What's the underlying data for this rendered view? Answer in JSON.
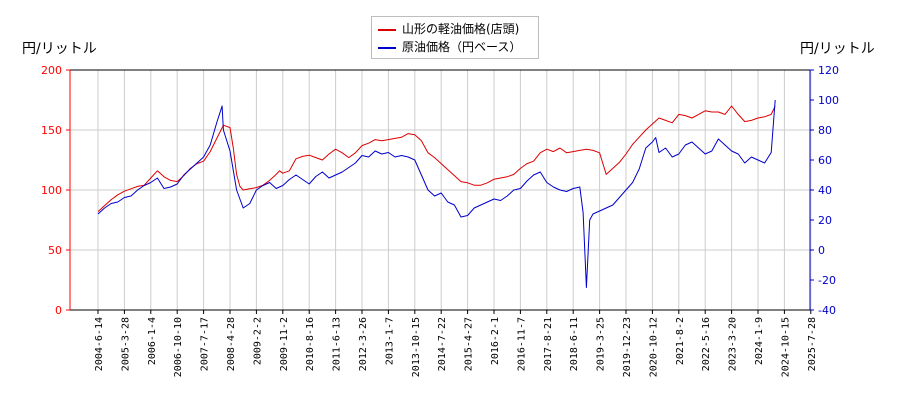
{
  "chart_data": {
    "type": "line",
    "left_unit": "円/リットル",
    "right_unit": "円/リットル",
    "x_ticks": [
      "2004-6-14",
      "2005-3-28",
      "2006-1-4",
      "2006-10-10",
      "2007-7-17",
      "2008-4-28",
      "2009-2-2",
      "2009-11-2",
      "2010-8-16",
      "2011-6-13",
      "2012-3-26",
      "2013-1-7",
      "2013-10-15",
      "2014-7-22",
      "2015-4-27",
      "2016-2-1",
      "2016-11-7",
      "2017-8-21",
      "2018-6-11",
      "2019-3-25",
      "2019-12-23",
      "2020-10-12",
      "2021-8-2",
      "2022-5-16",
      "2023-3-20",
      "2024-1-9",
      "2024-10-15",
      "2025-7-28"
    ],
    "y_left": {
      "min": 0,
      "max": 200,
      "ticks": [
        0,
        50,
        100,
        150,
        200
      ],
      "color": "#ff0000"
    },
    "y_right": {
      "min": -40,
      "max": 120,
      "ticks": [
        -40,
        -20,
        0,
        20,
        40,
        60,
        80,
        100,
        120
      ],
      "color": "#0000cc"
    },
    "grid": true,
    "legend_position": "top-center",
    "series": [
      {
        "name": "山形の軽油価格(店頭)",
        "axis": "left",
        "color": "#dd0000",
        "values": [
          [
            0,
            82
          ],
          [
            1,
            87
          ],
          [
            2,
            92
          ],
          [
            3,
            96
          ],
          [
            4,
            99
          ],
          [
            5,
            101
          ],
          [
            6,
            103
          ],
          [
            7,
            104
          ],
          [
            8,
            110
          ],
          [
            9,
            116
          ],
          [
            10,
            111
          ],
          [
            11,
            108
          ],
          [
            12,
            107
          ],
          [
            13,
            112
          ],
          [
            14,
            118
          ],
          [
            15,
            122
          ],
          [
            16,
            124
          ],
          [
            17,
            132
          ],
          [
            18,
            143
          ],
          [
            19,
            154
          ],
          [
            20,
            152
          ],
          [
            20.5,
            135
          ],
          [
            21,
            113
          ],
          [
            21.5,
            103
          ],
          [
            22,
            100
          ],
          [
            23,
            101
          ],
          [
            24,
            102
          ],
          [
            25,
            104
          ],
          [
            26,
            108
          ],
          [
            27,
            113
          ],
          [
            27.5,
            116
          ],
          [
            28,
            114
          ],
          [
            29,
            116
          ],
          [
            30,
            126
          ],
          [
            31,
            128
          ],
          [
            32,
            129
          ],
          [
            33,
            127
          ],
          [
            34,
            125
          ],
          [
            35,
            130
          ],
          [
            36,
            134
          ],
          [
            37,
            131
          ],
          [
            38,
            127
          ],
          [
            39,
            131
          ],
          [
            40,
            137
          ],
          [
            41,
            139
          ],
          [
            42,
            142
          ],
          [
            43,
            141
          ],
          [
            44,
            142
          ],
          [
            45,
            143
          ],
          [
            46,
            144
          ],
          [
            47,
            147
          ],
          [
            48,
            146
          ],
          [
            49,
            141
          ],
          [
            50,
            131
          ],
          [
            51,
            127
          ],
          [
            52,
            122
          ],
          [
            53,
            117
          ],
          [
            54,
            112
          ],
          [
            55,
            107
          ],
          [
            56,
            106
          ],
          [
            57,
            104
          ],
          [
            58,
            104
          ],
          [
            59,
            106
          ],
          [
            60,
            109
          ],
          [
            61,
            110
          ],
          [
            62,
            111
          ],
          [
            63,
            113
          ],
          [
            64,
            118
          ],
          [
            65,
            122
          ],
          [
            66,
            124
          ],
          [
            67,
            131
          ],
          [
            68,
            134
          ],
          [
            69,
            132
          ],
          [
            70,
            135
          ],
          [
            71,
            131
          ],
          [
            72,
            132
          ],
          [
            73,
            133
          ],
          [
            74,
            134
          ],
          [
            75,
            133
          ],
          [
            76,
            131
          ],
          [
            76.5,
            122
          ],
          [
            77,
            113
          ],
          [
            78,
            118
          ],
          [
            79,
            123
          ],
          [
            80,
            130
          ],
          [
            81,
            138
          ],
          [
            82,
            144
          ],
          [
            83,
            150
          ],
          [
            84,
            155
          ],
          [
            85,
            160
          ],
          [
            86,
            158
          ],
          [
            87,
            156
          ],
          [
            88,
            163
          ],
          [
            89,
            162
          ],
          [
            90,
            160
          ],
          [
            91,
            163
          ],
          [
            92,
            166
          ],
          [
            93,
            165
          ],
          [
            94,
            165
          ],
          [
            95,
            163
          ],
          [
            96,
            170
          ],
          [
            97,
            163
          ],
          [
            98,
            157
          ],
          [
            99,
            158
          ],
          [
            100,
            160
          ],
          [
            101,
            161
          ],
          [
            102,
            163
          ],
          [
            102.6,
            170
          ]
        ]
      },
      {
        "name": "原油価格（円ベース）",
        "axis": "right",
        "color": "#0000cc",
        "values": [
          [
            0,
            24
          ],
          [
            1,
            28
          ],
          [
            2,
            31
          ],
          [
            3,
            32
          ],
          [
            4,
            35
          ],
          [
            5,
            36
          ],
          [
            6,
            40
          ],
          [
            7,
            43
          ],
          [
            8,
            45
          ],
          [
            9,
            48
          ],
          [
            10,
            41
          ],
          [
            11,
            42
          ],
          [
            12,
            44
          ],
          [
            13,
            50
          ],
          [
            14,
            54
          ],
          [
            15,
            58
          ],
          [
            16,
            62
          ],
          [
            17,
            70
          ],
          [
            18,
            85
          ],
          [
            18.8,
            96
          ],
          [
            19,
            80
          ],
          [
            20,
            66
          ],
          [
            21,
            40
          ],
          [
            22,
            28
          ],
          [
            23,
            31
          ],
          [
            24,
            40
          ],
          [
            25,
            43
          ],
          [
            26,
            45
          ],
          [
            27,
            41
          ],
          [
            28,
            43
          ],
          [
            29,
            47
          ],
          [
            30,
            50
          ],
          [
            31,
            47
          ],
          [
            32,
            44
          ],
          [
            33,
            49
          ],
          [
            34,
            52
          ],
          [
            35,
            48
          ],
          [
            36,
            50
          ],
          [
            37,
            52
          ],
          [
            38,
            55
          ],
          [
            39,
            58
          ],
          [
            40,
            63
          ],
          [
            41,
            62
          ],
          [
            42,
            66
          ],
          [
            43,
            64
          ],
          [
            44,
            65
          ],
          [
            45,
            62
          ],
          [
            46,
            63
          ],
          [
            47,
            62
          ],
          [
            48,
            60
          ],
          [
            49,
            50
          ],
          [
            50,
            40
          ],
          [
            51,
            36
          ],
          [
            52,
            38
          ],
          [
            53,
            32
          ],
          [
            54,
            30
          ],
          [
            55,
            22
          ],
          [
            56,
            23
          ],
          [
            57,
            28
          ],
          [
            58,
            30
          ],
          [
            59,
            32
          ],
          [
            60,
            34
          ],
          [
            61,
            33
          ],
          [
            62,
            36
          ],
          [
            63,
            40
          ],
          [
            64,
            41
          ],
          [
            65,
            46
          ],
          [
            66,
            50
          ],
          [
            67,
            52
          ],
          [
            68,
            45
          ],
          [
            69,
            42
          ],
          [
            70,
            40
          ],
          [
            71,
            39
          ],
          [
            72,
            41
          ],
          [
            73,
            42
          ],
          [
            73.5,
            25
          ],
          [
            74,
            -25
          ],
          [
            74.5,
            20
          ],
          [
            75,
            24
          ],
          [
            76,
            26
          ],
          [
            77,
            28
          ],
          [
            78,
            30
          ],
          [
            79,
            35
          ],
          [
            80,
            40
          ],
          [
            81,
            45
          ],
          [
            82,
            54
          ],
          [
            83,
            68
          ],
          [
            84,
            72
          ],
          [
            84.5,
            75
          ],
          [
            85,
            65
          ],
          [
            86,
            68
          ],
          [
            87,
            62
          ],
          [
            88,
            64
          ],
          [
            89,
            70
          ],
          [
            90,
            72
          ],
          [
            91,
            68
          ],
          [
            92,
            64
          ],
          [
            93,
            66
          ],
          [
            94,
            74
          ],
          [
            95,
            70
          ],
          [
            96,
            66
          ],
          [
            97,
            64
          ],
          [
            98,
            58
          ],
          [
            99,
            62
          ],
          [
            100,
            60
          ],
          [
            101,
            58
          ],
          [
            102,
            65
          ],
          [
            102.6,
            100
          ]
        ]
      }
    ]
  }
}
